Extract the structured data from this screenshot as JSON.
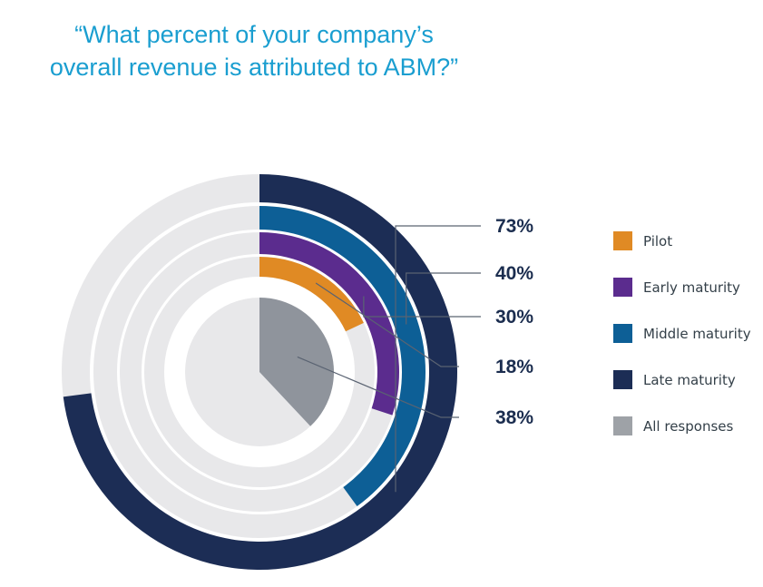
{
  "title_lines": [
    "“What percent of your company’s",
    "overall revenue is attributed to ABM?”"
  ],
  "chart_data": {
    "type": "radial-bar",
    "title": "“What percent of your company’s overall revenue is attributed to ABM?”",
    "track_color": "#e8e8ea",
    "series": [
      {
        "name": "Late maturity",
        "value": 73,
        "label": "73%",
        "color": "#1c2d55"
      },
      {
        "name": "Middle maturity",
        "value": 40,
        "label": "40%",
        "color": "#0d5f96"
      },
      {
        "name": "Early maturity",
        "value": 30,
        "label": "30%",
        "color": "#5b2c8e"
      },
      {
        "name": "Pilot",
        "value": 18,
        "label": "18%",
        "color": "#e08a24"
      },
      {
        "name": "All responses",
        "value": 38,
        "label": "38%",
        "color": "#8f949c"
      }
    ],
    "legend": {
      "placement": "right",
      "entries": [
        {
          "label": "Pilot",
          "color": "#e08a24"
        },
        {
          "label": "Early maturity",
          "color": "#5b2c8e"
        },
        {
          "label": "Middle maturity",
          "color": "#0d5f96"
        },
        {
          "label": "Late maturity",
          "color": "#1c2d55"
        },
        {
          "label": "All responses",
          "color": "#9ea2a7"
        }
      ]
    }
  }
}
